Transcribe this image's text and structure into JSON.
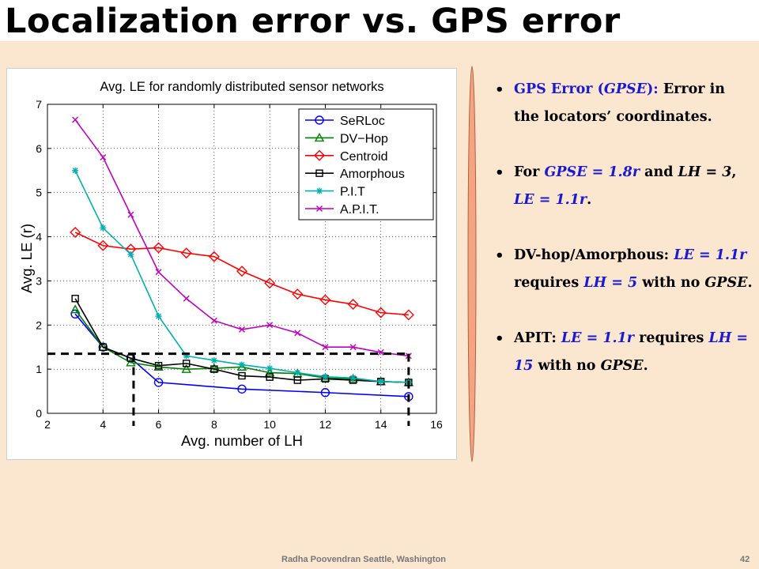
{
  "slide": {
    "title": "Localization error vs. GPS error",
    "footer_author": "Radha Poovendran  Seattle,  Washington",
    "page_number": "42",
    "colors": {
      "background": "#fbe6cf",
      "blue_text": "#1a1ad0",
      "divider_fill": "#f4a383"
    }
  },
  "bullets": [
    {
      "parts": [
        {
          "text": "GPS Error (",
          "style": "blue"
        },
        {
          "text": "GPSE",
          "style": "blue-italic"
        },
        {
          "text": "): ",
          "style": "blue"
        },
        {
          "text": "Error in the locators’ coordinates.",
          "style": "plain"
        }
      ]
    },
    {
      "parts": [
        {
          "text": "For ",
          "style": "plain"
        },
        {
          "text": "GPSE = 1.8r ",
          "style": "blue-italic"
        },
        {
          "text": " and ",
          "style": "plain"
        },
        {
          "text": "LH = 3",
          "style": "italic"
        },
        {
          "text": ", ",
          "style": "plain"
        },
        {
          "text": "LE = 1.1r",
          "style": "blue-italic"
        },
        {
          "text": ".",
          "style": "plain"
        }
      ]
    },
    {
      "parts": [
        {
          "text": "DV-hop/Amorphous: ",
          "style": "plain"
        },
        {
          "text": "LE = 1.1r ",
          "style": "blue-italic"
        },
        {
          "text": " requires ",
          "style": "plain"
        },
        {
          "text": "LH = 5",
          "style": "blue-italic"
        },
        {
          "text": " with no ",
          "style": "plain"
        },
        {
          "text": "GPSE",
          "style": "italic"
        },
        {
          "text": ".",
          "style": "plain"
        }
      ]
    },
    {
      "parts": [
        {
          "text": "APIT: ",
          "style": "plain"
        },
        {
          "text": "LE = 1.1r",
          "style": "blue-italic"
        },
        {
          "text": " requires ",
          "style": "plain"
        },
        {
          "text": "LH = 15",
          "style": "blue-italic"
        },
        {
          "text": " with no ",
          "style": "plain"
        },
        {
          "text": "GPSE",
          "style": "italic"
        },
        {
          "text": ".",
          "style": "plain"
        }
      ]
    }
  ],
  "chart_data": {
    "type": "line",
    "title": "Avg. LE for randomly distributed sensor networks",
    "xlabel": "Avg. number of LH",
    "ylabel": "Avg. LE (r)",
    "xlim": [
      2,
      16
    ],
    "ylim": [
      0,
      7
    ],
    "xticks": [
      2,
      4,
      6,
      8,
      10,
      12,
      14,
      16
    ],
    "yticks": [
      0,
      1,
      2,
      3,
      4,
      5,
      6,
      7
    ],
    "grid": true,
    "legend_position": "top-right",
    "series": [
      {
        "name": "SeRLoc",
        "color": "#0000ff",
        "marker": "circle",
        "x": [
          3,
          4,
          5,
          6,
          9,
          12,
          15
        ],
        "y": [
          2.25,
          1.5,
          1.25,
          0.7,
          0.55,
          0.47,
          0.38
        ]
      },
      {
        "name": "DV−Hop",
        "color": "#008000",
        "marker": "triangle",
        "x": [
          3,
          4,
          5,
          6,
          7,
          8,
          9,
          10,
          11,
          12,
          13,
          14,
          15
        ],
        "y": [
          2.35,
          1.5,
          1.15,
          1.05,
          1.0,
          1.02,
          1.05,
          0.92,
          0.9,
          0.8,
          0.78,
          0.72,
          0.7
        ]
      },
      {
        "name": "Centroid",
        "color": "#ff0000",
        "marker": "diamond",
        "x": [
          3,
          4,
          5,
          6,
          7,
          8,
          9,
          10,
          11,
          12,
          13,
          14,
          15
        ],
        "y": [
          4.1,
          3.8,
          3.72,
          3.75,
          3.63,
          3.55,
          3.22,
          2.95,
          2.7,
          2.57,
          2.47,
          2.28,
          2.23
        ]
      },
      {
        "name": "Amorphous",
        "color": "#000000",
        "marker": "square",
        "x": [
          3,
          4,
          5,
          6,
          7,
          8,
          9,
          10,
          11,
          12,
          13,
          14,
          15
        ],
        "y": [
          2.6,
          1.5,
          1.25,
          1.08,
          1.13,
          1.0,
          0.85,
          0.82,
          0.75,
          0.78,
          0.75,
          0.72,
          0.7
        ]
      },
      {
        "name": "P.I.T",
        "color": "#00b0b0",
        "marker": "star",
        "x": [
          3,
          4,
          5,
          6,
          7,
          8,
          9,
          10,
          11,
          12,
          13,
          14,
          15
        ],
        "y": [
          5.5,
          4.2,
          3.6,
          2.2,
          1.3,
          1.2,
          1.1,
          1.02,
          0.92,
          0.83,
          0.8,
          0.72,
          0.7
        ]
      },
      {
        "name": "A.P.I.T.",
        "color": "#c000c0",
        "marker": "x",
        "x": [
          3,
          4,
          5,
          6,
          7,
          8,
          9,
          10,
          11,
          12,
          13,
          14,
          15
        ],
        "y": [
          6.65,
          5.8,
          4.5,
          3.2,
          2.6,
          2.1,
          1.9,
          2.0,
          1.82,
          1.5,
          1.5,
          1.38,
          1.3
        ]
      }
    ],
    "annotation_lines": [
      {
        "description": "reference LE level",
        "y": 1.35,
        "x_from": 2,
        "x_to": 15,
        "style": "dashed"
      },
      {
        "description": "LH marker",
        "x": 5.1,
        "y_from": 0,
        "y_to": 1.35,
        "style": "dashed"
      },
      {
        "description": "LH marker",
        "x": 15,
        "y_from": 0,
        "y_to": 1.35,
        "style": "dashed"
      }
    ]
  }
}
